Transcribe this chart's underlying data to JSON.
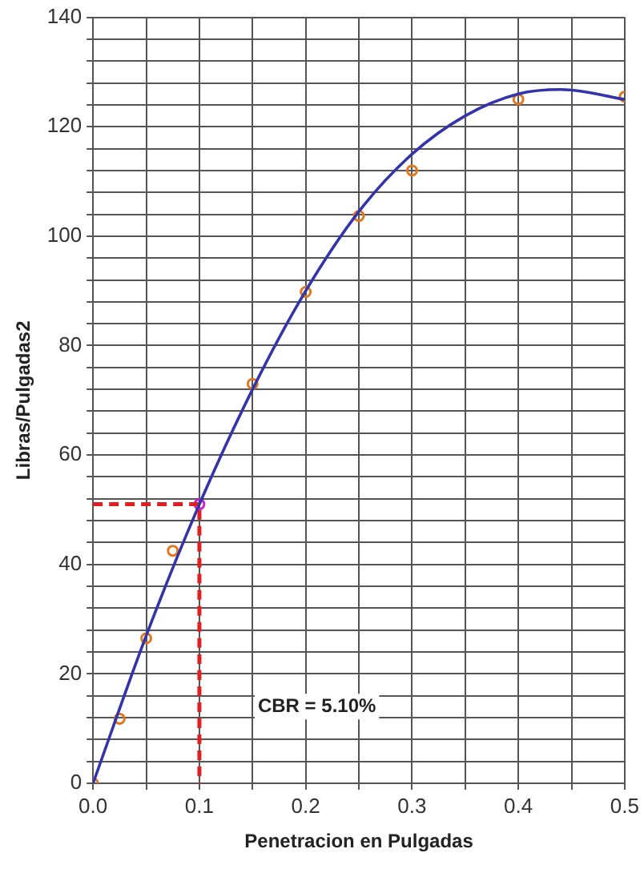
{
  "chart_data": {
    "type": "scatter",
    "xlabel": "Penetracion en Pulgadas",
    "ylabel": "Libras/Pulgadas2",
    "xlim": [
      0,
      0.5
    ],
    "ylim": [
      0,
      140
    ],
    "xticks": [
      {
        "value": 0,
        "label": "0.0"
      },
      {
        "value": 0.05,
        "label": null
      },
      0.1,
      {
        "value": 0.15,
        "label": null
      },
      0.2,
      {
        "value": 0.25,
        "label": null
      },
      0.3,
      {
        "value": 0.35,
        "label": null
      },
      0.4,
      {
        "value": 0.45,
        "label": null
      },
      0.5
    ],
    "yticks": [
      0,
      {
        "value": 4,
        "label": null
      },
      {
        "value": 8,
        "label": null
      },
      {
        "value": 12,
        "label": null
      },
      {
        "value": 16,
        "label": null
      },
      20,
      {
        "value": 24,
        "label": null
      },
      {
        "value": 28,
        "label": null
      },
      {
        "value": 32,
        "label": null
      },
      {
        "value": 36,
        "label": null
      },
      40,
      {
        "value": 44,
        "label": null
      },
      {
        "value": 48,
        "label": null
      },
      {
        "value": 52,
        "label": null
      },
      {
        "value": 56,
        "label": null
      },
      60,
      {
        "value": 64,
        "label": null
      },
      {
        "value": 68,
        "label": null
      },
      {
        "value": 72,
        "label": null
      },
      {
        "value": 76,
        "label": null
      },
      80,
      {
        "value": 84,
        "label": null
      },
      {
        "value": 88,
        "label": null
      },
      {
        "value": 92,
        "label": null
      },
      {
        "value": 96,
        "label": null
      },
      100,
      {
        "value": 104,
        "label": null
      },
      {
        "value": 108,
        "label": null
      },
      {
        "value": 112,
        "label": null
      },
      {
        "value": 116,
        "label": null
      },
      120,
      {
        "value": 124,
        "label": null
      },
      {
        "value": 128,
        "label": null
      },
      {
        "value": 132,
        "label": null
      },
      {
        "value": 136,
        "label": null
      },
      140
    ],
    "grid": true,
    "legend": false,
    "annotations": [
      "CBR = 5.10%"
    ],
    "series": [
      {
        "type": "line",
        "color": "#3333aa",
        "marker": "none",
        "line_style": "solid",
        "x": [
          0,
          0.05,
          0.1,
          0.15,
          0.2,
          0.25,
          0.3,
          0.35,
          0.4,
          0.44,
          0.5
        ],
        "values": [
          0,
          27,
          51,
          72,
          90,
          104.5,
          115,
          122,
          126,
          126.8,
          125
        ]
      },
      {
        "type": "line",
        "color": "#e02020",
        "marker": "none",
        "line_style": "dashed",
        "x": [
          0,
          0.1,
          0.1
        ],
        "values": [
          51,
          51,
          0
        ]
      },
      {
        "color": "#e07820",
        "marker": "circle",
        "colors": [
          "#e07820",
          "#e07820",
          "#e07820",
          "#e07820",
          "#cc22cc",
          "#e07820",
          "#e07820",
          "#e07820",
          "#e07820",
          "#e07820",
          "#e07820"
        ],
        "x": [
          0,
          0.025,
          0.05,
          0.075,
          0.1,
          0.15,
          0.2,
          0.25,
          0.3,
          0.4,
          0.5
        ],
        "values": [
          0,
          11.8,
          26.5,
          42.5,
          51,
          73,
          89.8,
          103.7,
          112,
          125,
          125.5
        ]
      }
    ]
  }
}
